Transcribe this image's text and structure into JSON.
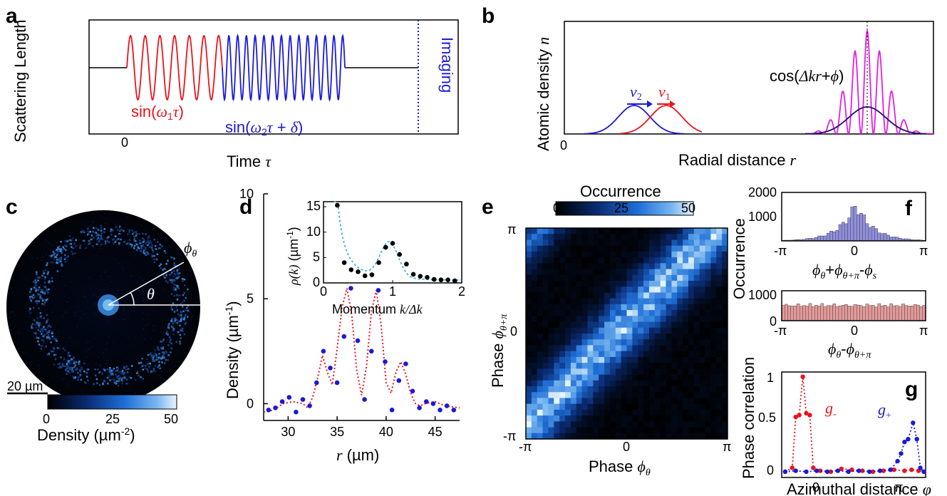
{
  "panel_letters": {
    "a": "a",
    "b": "b",
    "c": "c",
    "d": "d",
    "e": "e",
    "f": "f",
    "g": "g"
  },
  "panel_a": {
    "ylabel": "Scattering Length",
    "xlabel_text": "Time ",
    "xlabel_sym": "τ",
    "tick_zero": "0",
    "imaging": "Imaging",
    "eq1_pre": "sin(",
    "eq1_w": "ω",
    "eq1_sub": "1",
    "eq1_tau": "τ",
    "eq1_post": ")",
    "eq2_pre": "sin(",
    "eq2_w": "ω",
    "eq2_sub": "2",
    "eq2_tau": "τ",
    "eq2_mid": " + ",
    "eq2_delta": "δ",
    "eq2_post": ")",
    "colors": {
      "mod1": "#e8141c",
      "mod2": "#1a1ad6",
      "base": "#000000"
    }
  },
  "panel_b": {
    "ylabel_text": "Atomic density ",
    "ylabel_sym": "n",
    "xlabel_text": "Radial distance ",
    "xlabel_sym": "r",
    "tick_zero": "0",
    "v2": "v",
    "v2_sub": "2",
    "v1": "v",
    "v1_sub": "1",
    "eq_pre": "cos(",
    "eq_dk": "Δkr",
    "eq_plus": "+",
    "eq_phi": "ϕ",
    "eq_post": ")",
    "colors": {
      "blue": "#1a1ad6",
      "red": "#e8141c",
      "magenta": "#e020e0",
      "black": "#000000"
    }
  },
  "panel_c": {
    "phi": "ϕ",
    "phi_sub": "θ",
    "theta": "θ",
    "scalebar": "20 µm",
    "cbar_ticks": [
      "0",
      "25",
      "50"
    ],
    "cbar_label": "Density (µm",
    "cbar_sup": "-2",
    "cbar_close": ")"
  },
  "panel_d": {
    "chart_data": {
      "type": "scatter",
      "xlabel": "r (µm)",
      "ylabel": "Density (µm-1)",
      "xlim": [
        27.5,
        47.5
      ],
      "ylim": [
        -0.8,
        10
      ],
      "xticks": [
        "30",
        "35",
        "40",
        "45"
      ],
      "yticks": [
        "0",
        "5",
        "10"
      ],
      "series": [
        {
          "x": [
            28,
            28.7,
            29.4,
            30.1,
            30.8,
            31.5,
            32.2,
            32.9,
            33.6,
            34.3,
            35.0,
            35.7,
            36.4,
            37.1,
            37.8,
            38.5,
            39.2,
            39.9,
            40.6,
            41.3,
            42.0,
            42.7,
            43.4,
            44.1,
            44.8,
            45.5,
            46.2,
            46.9
          ],
          "y": [
            -0.3,
            -0.2,
            0.1,
            0.3,
            -0.4,
            0.2,
            -0.1,
            1.0,
            2.5,
            1.7,
            1.0,
            3.2,
            5.5,
            3.0,
            0.2,
            2.5,
            5.4,
            2.0,
            -0.3,
            1.1,
            1.9,
            0.6,
            -0.2,
            0.1,
            0.0,
            -0.3,
            -0.1,
            -0.3
          ]
        }
      ],
      "fit": {
        "x": [
          27.5,
          28.5,
          29.5,
          30.5,
          31.5,
          32.0,
          32.5,
          33.0,
          33.5,
          34.0,
          34.5,
          35.0,
          35.5,
          36.0,
          36.5,
          37.0,
          37.5,
          38.0,
          38.5,
          39.0,
          39.5,
          40.0,
          40.5,
          41.0,
          41.5,
          42.0,
          42.5,
          43.0,
          43.5,
          44.0,
          45.0,
          46.0,
          47.5
        ],
        "y": [
          -0.4,
          -0.3,
          0.0,
          0.1,
          0.0,
          -0.2,
          0.3,
          1.2,
          2.3,
          1.5,
          0.9,
          2.6,
          4.6,
          5.5,
          4.2,
          1.6,
          0.4,
          1.8,
          4.4,
          5.4,
          3.7,
          1.0,
          0.5,
          1.5,
          2.0,
          1.4,
          0.5,
          0.0,
          -0.1,
          0.0,
          0.1,
          -0.1,
          -0.2
        ]
      }
    },
    "inset": {
      "chart_data": {
        "type": "scatter",
        "ylabel": "ρ(k) (µm-1)",
        "xlabel": "Momentum k/Δk",
        "xlim": [
          0,
          2
        ],
        "ylim": [
          0,
          16
        ],
        "xticks": [
          "0",
          "1",
          "2"
        ],
        "yticks": [
          "0",
          "5",
          "10",
          "15"
        ],
        "x": [
          0.2,
          0.3,
          0.4,
          0.5,
          0.6,
          0.7,
          0.8,
          0.9,
          1.0,
          1.1,
          1.2,
          1.3,
          1.4,
          1.5,
          1.6,
          1.7,
          1.8,
          1.9
        ],
        "y": [
          15.3,
          4.0,
          2.6,
          2.2,
          1.4,
          1.6,
          4.0,
          7.0,
          7.8,
          5.6,
          3.7,
          1.7,
          1.3,
          1.1,
          0.7,
          0.6,
          0.6,
          0.4
        ]
      },
      "ylabel_sym": "ρ(k)",
      "ylabel_unit": " (µm",
      "ylabel_sup": "-1",
      "ylabel_close": ")",
      "xlabel_text": "Momentum ",
      "xlabel_sym": "k/Δk"
    },
    "ylabel_text": "Density  (µm",
    "ylabel_sup": "-1",
    "ylabel_close": ")",
    "xlabel_sym": "r",
    "xlabel_unit": " (µm)"
  },
  "panel_e": {
    "title": "Occurrence",
    "cbar_ticks": [
      "0",
      "25",
      "50"
    ],
    "ylabel_text": "Phase ",
    "ylabel_sym": "ϕ",
    "ylabel_sub": "θ+π",
    "xlabel_text": "Phase ",
    "xlabel_sym": "ϕ",
    "xlabel_sub": "θ",
    "xticks": [
      "-π",
      "0",
      "π"
    ],
    "yticks": [
      "π",
      "0",
      "-π"
    ]
  },
  "panel_f": {
    "ylabel": "Occurrence",
    "top": {
      "chart_data": {
        "type": "bar",
        "xlim": [
          -3.1416,
          3.1416
        ],
        "ylim": [
          0,
          2000
        ],
        "yticks": [
          "1000",
          "2000"
        ],
        "xticks": [
          "-π",
          "0",
          "π"
        ],
        "bins": 48,
        "center": 0.1,
        "peak": 1620,
        "width": 0.75
      },
      "xlabel_a": "ϕ",
      "xlabel_a_sub": "θ",
      "xlabel_plus": "+",
      "xlabel_b": "ϕ",
      "xlabel_b_sub": "θ+π",
      "xlabel_minus": "-",
      "xlabel_c": "ϕ",
      "xlabel_c_sub": "s"
    },
    "bottom": {
      "chart_data": {
        "type": "bar",
        "xlim": [
          -3.1416,
          3.1416
        ],
        "ylim": [
          0,
          1000
        ],
        "yticks": [
          "0",
          "1000"
        ],
        "xticks": [
          "-π",
          "0",
          "π"
        ],
        "bins": 48,
        "level": 550
      },
      "xlabel_a": "ϕ",
      "xlabel_a_sub": "θ",
      "xlabel_minus": "-",
      "xlabel_b": "ϕ",
      "xlabel_b_sub": "θ+π"
    },
    "colors": {
      "top": "#8f8fdc",
      "bottom": "#e49a9a"
    }
  },
  "panel_g": {
    "chart_data": {
      "type": "line",
      "ylabel": "Phase correlation",
      "xlabel": "Azimuthal distance φ",
      "xlim": [
        -0.6,
        3.5
      ],
      "ylim": [
        -0.05,
        1.05
      ],
      "yticks": [
        "0",
        "0.5",
        "1"
      ],
      "xticks": [
        "0",
        "π"
      ],
      "series": [
        {
          "name": "g-",
          "color": "#e8141c",
          "x": [
            -0.5,
            -0.3,
            -0.2,
            -0.1,
            0.0,
            0.1,
            0.2,
            0.3,
            0.5,
            0.8,
            1.1,
            1.4,
            1.7,
            2.0,
            2.3,
            2.6,
            2.9,
            3.1,
            3.3,
            3.45
          ],
          "y": [
            0.01,
            0.05,
            0.58,
            0.6,
            1.0,
            0.62,
            0.6,
            0.05,
            0.02,
            0.01,
            0.04,
            0.03,
            0.02,
            0.01,
            0.02,
            0.03,
            0.02,
            0.03,
            0.02,
            0.01
          ]
        },
        {
          "name": "g+",
          "color": "#1a1ad6",
          "x": [
            -0.5,
            -0.2,
            0.1,
            0.4,
            0.7,
            1.0,
            1.3,
            1.6,
            1.9,
            2.2,
            2.5,
            2.7,
            2.8,
            2.9,
            3.0,
            3.14,
            3.25,
            3.35,
            3.45
          ],
          "y": [
            0.01,
            0.02,
            0.01,
            0.02,
            0.01,
            0.02,
            0.01,
            0.02,
            0.01,
            0.02,
            0.03,
            0.12,
            0.2,
            0.32,
            0.35,
            0.52,
            0.35,
            0.05,
            0.01
          ]
        }
      ]
    },
    "label_gm": "g",
    "label_gm_sub": "-",
    "label_gp": "g",
    "label_gp_sub": "+",
    "xlabel_text": "Azimuthal distance ",
    "xlabel_sym": "φ"
  }
}
